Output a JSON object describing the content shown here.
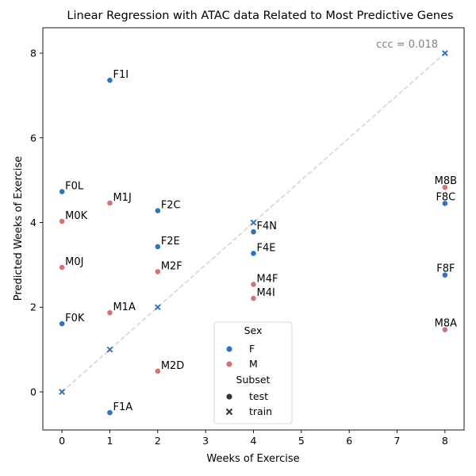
{
  "chart_data": {
    "type": "scatter",
    "title": "Linear Regression with ATAC data Related to Most Predictive Genes",
    "xlabel": "Weeks of Exercise",
    "ylabel": "Predicted Weeks of Exercise",
    "xlim": [
      -0.4,
      8.4
    ],
    "ylim": [
      -0.9,
      8.6
    ],
    "xticks": [
      "0",
      "1",
      "2",
      "3",
      "4",
      "5",
      "6",
      "7",
      "8"
    ],
    "yticks": [
      "0",
      "2",
      "4",
      "6",
      "8"
    ],
    "annotation": "ccc = 0.018",
    "identity_line": true,
    "grid": false,
    "colors": {
      "F": "#3274b6",
      "M": "#d47374",
      "reference_line": "#d3d3d3",
      "annotation": "#808080"
    },
    "legend": {
      "placement": "lower-center",
      "hue_title": "Sex",
      "hue_entries": [
        {
          "key": "F",
          "label": "F"
        },
        {
          "key": "M",
          "label": "M"
        }
      ],
      "style_title": "Subset",
      "style_entries": [
        {
          "marker": "circle",
          "label": "test"
        },
        {
          "marker": "x",
          "label": "train"
        }
      ]
    },
    "test_points": [
      {
        "label": "F1I",
        "x": 1,
        "y": 7.36,
        "sex": "F"
      },
      {
        "label": "F0L",
        "x": 0,
        "y": 4.73,
        "sex": "F"
      },
      {
        "label": "M1J",
        "x": 1,
        "y": 4.46,
        "sex": "M"
      },
      {
        "label": "F2C",
        "x": 2,
        "y": 4.28,
        "sex": "F"
      },
      {
        "label": "M0K",
        "x": 0,
        "y": 4.03,
        "sex": "M"
      },
      {
        "label": "F4N",
        "x": 4,
        "y": 3.78,
        "sex": "F"
      },
      {
        "label": "F2E",
        "x": 2,
        "y": 3.43,
        "sex": "F"
      },
      {
        "label": "F4E",
        "x": 4,
        "y": 3.27,
        "sex": "F"
      },
      {
        "label": "M0J",
        "x": 0,
        "y": 2.94,
        "sex": "M"
      },
      {
        "label": "M2F",
        "x": 2,
        "y": 2.84,
        "sex": "M"
      },
      {
        "label": "M4F",
        "x": 4,
        "y": 2.54,
        "sex": "M"
      },
      {
        "label": "M4I",
        "x": 4,
        "y": 2.21,
        "sex": "M"
      },
      {
        "label": "M1A",
        "x": 1,
        "y": 1.87,
        "sex": "M"
      },
      {
        "label": "F0K",
        "x": 0,
        "y": 1.61,
        "sex": "F"
      },
      {
        "label": "M2D",
        "x": 2,
        "y": 0.49,
        "sex": "M"
      },
      {
        "label": "F1A",
        "x": 1,
        "y": -0.49,
        "sex": "F"
      },
      {
        "label": "M8B",
        "x": 8,
        "y": 4.83,
        "sex": "M"
      },
      {
        "label": "F8C",
        "x": 8,
        "y": 4.45,
        "sex": "F"
      },
      {
        "label": "F8F",
        "x": 8,
        "y": 2.76,
        "sex": "F"
      },
      {
        "label": "M8A",
        "x": 8,
        "y": 1.47,
        "sex": "M"
      }
    ],
    "train_points": [
      {
        "x": 0,
        "y": 0,
        "sex": "F"
      },
      {
        "x": 1,
        "y": 1,
        "sex": "F"
      },
      {
        "x": 2,
        "y": 2,
        "sex": "F"
      },
      {
        "x": 4,
        "y": 4,
        "sex": "F"
      },
      {
        "x": 8,
        "y": 8,
        "sex": "F"
      }
    ]
  }
}
